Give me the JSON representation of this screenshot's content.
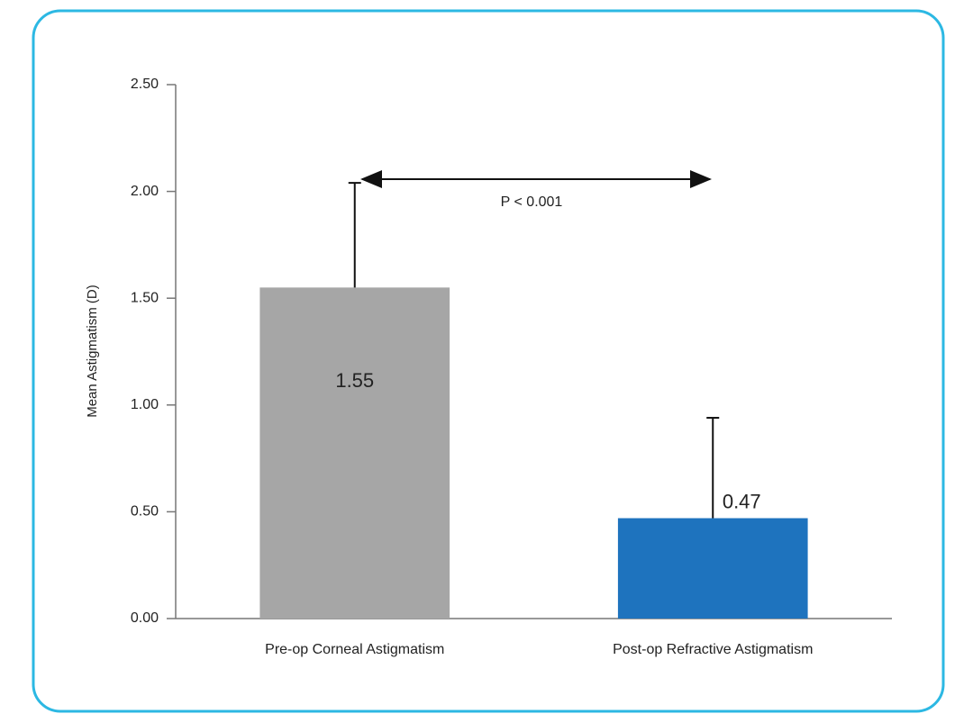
{
  "chart_data": {
    "type": "bar",
    "y_label": "Mean Astigmatism (D)",
    "categories": [
      "Pre-op Corneal Astigmatism",
      "Post-op Refractive Astigmatism"
    ],
    "values": [
      1.55,
      0.47
    ],
    "errors": [
      0.49,
      0.47
    ],
    "colors": [
      "#a6a6a6",
      "#1e73be"
    ],
    "ylim": [
      0,
      2.5
    ],
    "yticks": [
      {
        "value": 0,
        "label": "0.00"
      },
      {
        "value": 0.5,
        "label": "0.50"
      },
      {
        "value": 1,
        "label": "1.00"
      },
      {
        "value": 1.5,
        "label": "1.50"
      },
      {
        "value": 2,
        "label": "2.00"
      },
      {
        "value": 2.5,
        "label": "2.50"
      }
    ],
    "annotation": "P < 0.001",
    "grid": false
  }
}
